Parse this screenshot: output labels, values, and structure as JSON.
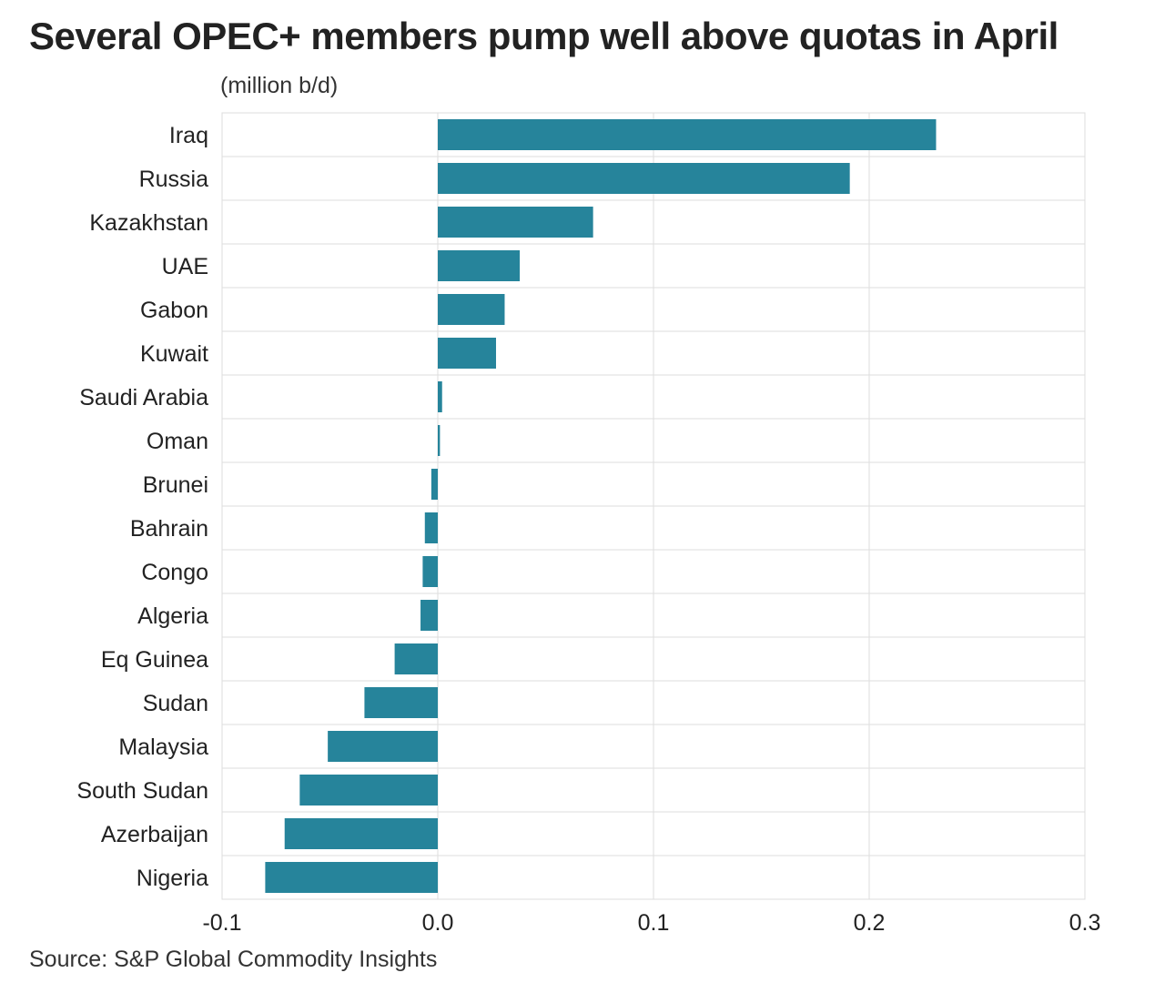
{
  "chart_data": {
    "type": "bar",
    "orientation": "horizontal",
    "title": "Several OPEC+ members pump well above quotas in April",
    "subtitle": "(million b/d)",
    "source": "Source: S&P Global Commodity Insights",
    "xlabel": "",
    "ylabel": "",
    "xlim": [
      -0.1,
      0.3
    ],
    "ticks": [
      -0.1,
      0.0,
      0.1,
      0.2,
      0.3
    ],
    "tick_labels": [
      "-0.1",
      "0.0",
      "0.1",
      "0.2",
      "0.3"
    ],
    "grid": true,
    "legend": "none",
    "bar_color": "#26849b",
    "grid_color": "#dddddd",
    "categories": [
      "Iraq",
      "Russia",
      "Kazakhstan",
      "UAE",
      "Gabon",
      "Kuwait",
      "Saudi Arabia",
      "Oman",
      "Brunei",
      "Bahrain",
      "Congo",
      "Algeria",
      "Eq Guinea",
      "Sudan",
      "Malaysia",
      "South Sudan",
      "Azerbaijan",
      "Nigeria"
    ],
    "values": [
      0.231,
      0.191,
      0.072,
      0.038,
      0.031,
      0.027,
      0.002,
      0.001,
      -0.003,
      -0.006,
      -0.007,
      -0.008,
      -0.02,
      -0.034,
      -0.051,
      -0.064,
      -0.071,
      -0.08
    ]
  }
}
